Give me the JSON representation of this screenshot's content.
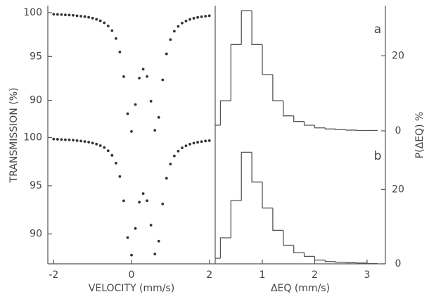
{
  "chart_data": [
    {
      "type": "scatter",
      "ylabel": "TRANSMISSION (%)",
      "x": [
        -2.0,
        -1.9,
        -1.8,
        -1.7,
        -1.6,
        -1.5,
        -1.4,
        -1.3,
        -1.2,
        -1.1,
        -1.0,
        -0.9,
        -0.8,
        -0.7,
        -0.6,
        -0.5,
        -0.4,
        -0.3,
        -0.2,
        -0.1,
        0.0,
        0.1,
        0.2,
        0.3,
        0.4,
        0.5,
        0.6,
        0.7,
        0.8,
        0.9,
        1.0,
        1.1,
        1.2,
        1.3,
        1.4,
        1.5,
        1.6,
        1.7,
        1.8,
        1.9,
        2.0
      ],
      "values": [
        99.82,
        99.8,
        99.78,
        99.75,
        99.73,
        99.7,
        99.65,
        99.6,
        99.55,
        99.47,
        99.37,
        99.24,
        99.07,
        98.84,
        98.48,
        97.95,
        97.05,
        95.51,
        92.71,
        88.47,
        86.45,
        89.52,
        92.54,
        93.55,
        92.72,
        89.9,
        86.58,
        88.06,
        92.34,
        95.3,
        96.93,
        97.88,
        98.43,
        98.81,
        99.05,
        99.23,
        99.36,
        99.46,
        99.53,
        99.6,
        99.65
      ],
      "color": "#333333",
      "xlim": [
        -2.15,
        2.15
      ],
      "ylim": [
        86.2,
        100.64
      ],
      "yticks": [
        90,
        95,
        100
      ]
    },
    {
      "type": "scatter",
      "xlabel": "VELOCITY (mm/s)",
      "x": [
        -2.0,
        -1.9,
        -1.8,
        -1.7,
        -1.6,
        -1.5,
        -1.4,
        -1.3,
        -1.2,
        -1.1,
        -1.0,
        -0.9,
        -0.8,
        -0.7,
        -0.6,
        -0.5,
        -0.4,
        -0.3,
        -0.2,
        -0.1,
        0.0,
        0.1,
        0.2,
        0.3,
        0.4,
        0.5,
        0.6,
        0.7,
        0.8,
        0.9,
        1.0,
        1.1,
        1.2,
        1.3,
        1.4,
        1.5,
        1.6,
        1.7,
        1.8,
        1.9,
        2.0
      ],
      "values": [
        99.84,
        99.82,
        99.8,
        99.77,
        99.76,
        99.73,
        99.68,
        99.64,
        99.59,
        99.52,
        99.43,
        99.32,
        99.16,
        98.96,
        98.63,
        98.15,
        97.34,
        95.96,
        93.44,
        89.62,
        87.8,
        90.57,
        93.29,
        94.19,
        93.45,
        90.91,
        87.92,
        89.25,
        93.11,
        95.77,
        97.24,
        98.09,
        98.59,
        98.93,
        99.14,
        99.31,
        99.42,
        99.51,
        99.58,
        99.64,
        99.68
      ],
      "color": "#333333",
      "xlim": [
        -2.15,
        2.15
      ],
      "xticks": [
        -2,
        0,
        2
      ],
      "ylim": [
        86.9,
        100.4
      ],
      "yticks": [
        90,
        95,
        100
      ]
    },
    {
      "type": "histogram",
      "annotation": "a",
      "ylabel": "P(ΔEQ) %",
      "bins": [
        0.1,
        0.2,
        0.4,
        0.6,
        0.8,
        1.0,
        1.2,
        1.4,
        1.6,
        1.8,
        2.0,
        2.2,
        2.4,
        2.6,
        2.8,
        3.0,
        3.2
      ],
      "values": [
        1.5,
        8,
        23,
        32,
        23,
        15,
        8,
        4,
        2.5,
        1.5,
        0.8,
        0.5,
        0.3,
        0.2,
        0.1,
        0.1
      ],
      "color": "#555555",
      "xlim": [
        0.1,
        3.35
      ],
      "ylim": [
        0,
        33
      ],
      "yticks": [
        0,
        20
      ]
    },
    {
      "type": "histogram",
      "annotation": "b",
      "xlabel": "ΔEQ (mm/s)",
      "bins": [
        0.1,
        0.2,
        0.4,
        0.6,
        0.8,
        1.0,
        1.2,
        1.4,
        1.6,
        1.8,
        2.0,
        2.2,
        2.4,
        2.6,
        2.8,
        3.0,
        3.2
      ],
      "values": [
        1.5,
        7,
        17,
        30,
        22,
        15,
        9,
        5,
        3,
        2,
        1,
        0.6,
        0.4,
        0.3,
        0.2,
        0.1
      ],
      "color": "#555555",
      "xlim": [
        0.1,
        3.35
      ],
      "xticks": [
        1,
        2,
        3
      ],
      "ylim": [
        0,
        35
      ],
      "yticks": [
        0,
        20
      ]
    }
  ]
}
